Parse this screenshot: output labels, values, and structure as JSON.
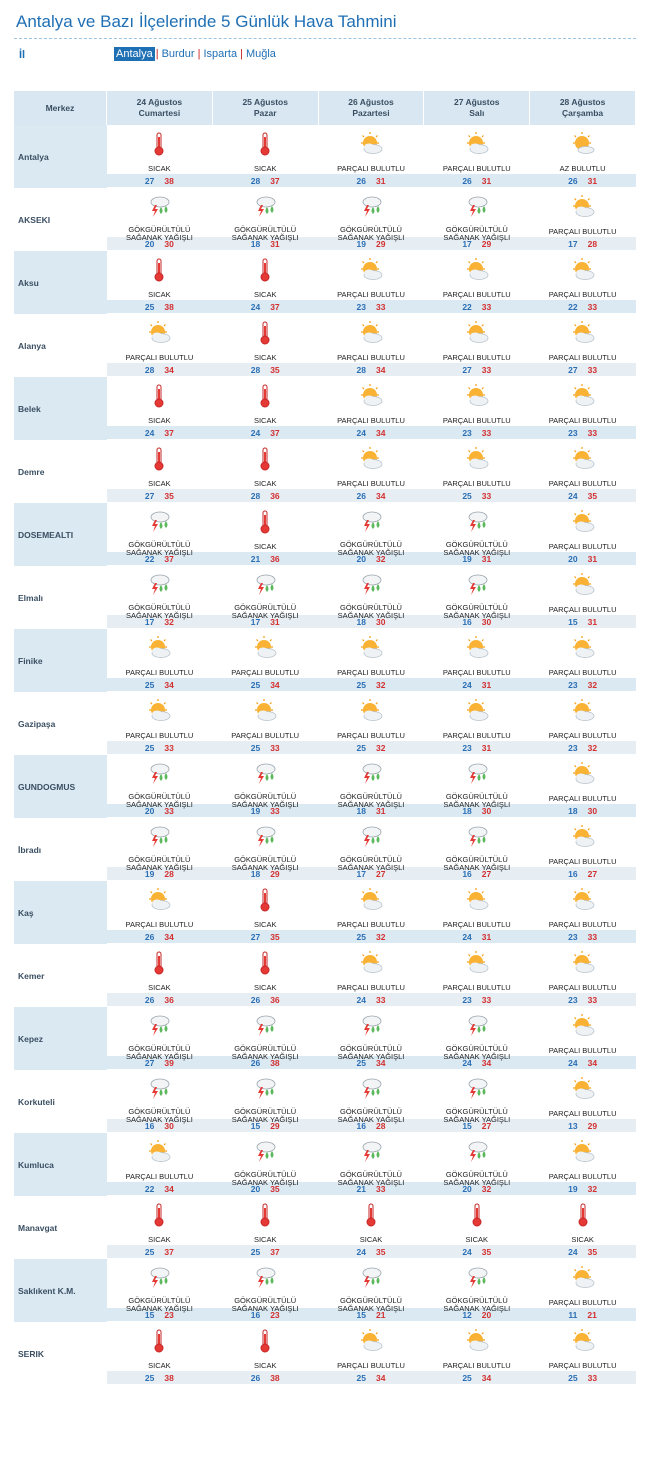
{
  "page_title": "Antalya ve Bazı İlçelerinde 5 Günlük Hava Tahmini",
  "il_label": "İl",
  "provinces": [
    {
      "label": "Antalya",
      "active": true
    },
    {
      "label": "Burdur",
      "active": false
    },
    {
      "label": "Isparta",
      "active": false
    },
    {
      "label": "Muğla",
      "active": false
    }
  ],
  "header": {
    "merkez": "Merkez",
    "days": [
      {
        "date": "24 Ağustos",
        "weekday": "Cumartesi"
      },
      {
        "date": "25 Ağustos",
        "weekday": "Pazar"
      },
      {
        "date": "26 Ağustos",
        "weekday": "Pazartesi"
      },
      {
        "date": "27 Ağustos",
        "weekday": "Salı"
      },
      {
        "date": "28 Ağustos",
        "weekday": "Çarşamba"
      }
    ]
  },
  "conditions": {
    "hot": "SICAK",
    "partly": "PARÇALI BULUTLU",
    "few": "AZ BULUTLU",
    "storm_1": "GÖKGÜRÜLTÜLÜ",
    "storm_2": "SAĞANAK YAĞIŞLI"
  },
  "icons": {
    "hot": "thermometer-icon",
    "partly": "partly-cloudy-icon",
    "few": "few-clouds-icon",
    "storm": "thunderstorm-icon"
  },
  "colors": {
    "accent": "#1f6fb5",
    "low": "#2a6fb5",
    "high": "#d32f2f",
    "shade": "#dbe9f2"
  },
  "cities": [
    {
      "name": "Antalya",
      "days": [
        [
          "hot",
          27,
          38
        ],
        [
          "hot",
          28,
          37
        ],
        [
          "partly",
          26,
          31
        ],
        [
          "partly",
          26,
          31
        ],
        [
          "few",
          26,
          31
        ]
      ]
    },
    {
      "name": "AKSEKI",
      "days": [
        [
          "storm",
          20,
          30
        ],
        [
          "storm",
          18,
          31
        ],
        [
          "storm",
          19,
          29
        ],
        [
          "storm",
          17,
          29
        ],
        [
          "partly",
          17,
          28
        ]
      ]
    },
    {
      "name": "Aksu",
      "days": [
        [
          "hot",
          25,
          38
        ],
        [
          "hot",
          24,
          37
        ],
        [
          "partly",
          23,
          33
        ],
        [
          "partly",
          22,
          33
        ],
        [
          "partly",
          22,
          33
        ]
      ]
    },
    {
      "name": "Alanya",
      "days": [
        [
          "partly",
          28,
          34
        ],
        [
          "hot",
          28,
          35
        ],
        [
          "partly",
          28,
          34
        ],
        [
          "partly",
          27,
          33
        ],
        [
          "partly",
          27,
          33
        ]
      ]
    },
    {
      "name": "Belek",
      "days": [
        [
          "hot",
          24,
          37
        ],
        [
          "hot",
          24,
          37
        ],
        [
          "partly",
          24,
          34
        ],
        [
          "partly",
          23,
          33
        ],
        [
          "partly",
          23,
          33
        ]
      ]
    },
    {
      "name": "Demre",
      "days": [
        [
          "hot",
          27,
          35
        ],
        [
          "hot",
          28,
          36
        ],
        [
          "partly",
          26,
          34
        ],
        [
          "partly",
          25,
          33
        ],
        [
          "partly",
          24,
          35
        ]
      ]
    },
    {
      "name": "DOSEMEALTI",
      "days": [
        [
          "storm",
          22,
          37
        ],
        [
          "hot",
          21,
          36
        ],
        [
          "storm",
          20,
          32
        ],
        [
          "storm",
          19,
          31
        ],
        [
          "partly",
          20,
          31
        ]
      ]
    },
    {
      "name": "Elmalı",
      "days": [
        [
          "storm",
          17,
          32
        ],
        [
          "storm",
          17,
          31
        ],
        [
          "storm",
          18,
          30
        ],
        [
          "storm",
          16,
          30
        ],
        [
          "partly",
          15,
          31
        ]
      ]
    },
    {
      "name": "Finike",
      "days": [
        [
          "partly",
          25,
          34
        ],
        [
          "partly",
          25,
          34
        ],
        [
          "partly",
          25,
          32
        ],
        [
          "partly",
          24,
          31
        ],
        [
          "partly",
          23,
          32
        ]
      ]
    },
    {
      "name": "Gazipaşa",
      "days": [
        [
          "partly",
          25,
          33
        ],
        [
          "partly",
          25,
          33
        ],
        [
          "partly",
          25,
          32
        ],
        [
          "partly",
          23,
          31
        ],
        [
          "partly",
          23,
          32
        ]
      ]
    },
    {
      "name": "GUNDOGMUS",
      "days": [
        [
          "storm",
          20,
          33
        ],
        [
          "storm",
          19,
          33
        ],
        [
          "storm",
          18,
          31
        ],
        [
          "storm",
          18,
          30
        ],
        [
          "partly",
          18,
          30
        ]
      ]
    },
    {
      "name": "İbradı",
      "days": [
        [
          "storm",
          19,
          28
        ],
        [
          "storm",
          18,
          29
        ],
        [
          "storm",
          17,
          27
        ],
        [
          "storm",
          16,
          27
        ],
        [
          "partly",
          16,
          27
        ]
      ]
    },
    {
      "name": "Kaş",
      "days": [
        [
          "partly",
          26,
          34
        ],
        [
          "hot",
          27,
          35
        ],
        [
          "partly",
          25,
          32
        ],
        [
          "partly",
          24,
          31
        ],
        [
          "partly",
          23,
          33
        ]
      ]
    },
    {
      "name": "Kemer",
      "days": [
        [
          "hot",
          26,
          36
        ],
        [
          "hot",
          26,
          36
        ],
        [
          "partly",
          24,
          33
        ],
        [
          "partly",
          23,
          33
        ],
        [
          "partly",
          23,
          33
        ]
      ]
    },
    {
      "name": "Kepez",
      "days": [
        [
          "storm",
          27,
          39
        ],
        [
          "storm",
          26,
          38
        ],
        [
          "storm",
          25,
          34
        ],
        [
          "storm",
          24,
          34
        ],
        [
          "partly",
          24,
          34
        ]
      ]
    },
    {
      "name": "Korkuteli",
      "days": [
        [
          "storm",
          16,
          30
        ],
        [
          "storm",
          15,
          29
        ],
        [
          "storm",
          16,
          28
        ],
        [
          "storm",
          15,
          27
        ],
        [
          "partly",
          13,
          29
        ]
      ]
    },
    {
      "name": "Kumluca",
      "days": [
        [
          "partly",
          22,
          34
        ],
        [
          "storm",
          20,
          35
        ],
        [
          "storm",
          21,
          33
        ],
        [
          "storm",
          20,
          32
        ],
        [
          "partly",
          19,
          32
        ]
      ]
    },
    {
      "name": "Manavgat",
      "days": [
        [
          "hot",
          25,
          37
        ],
        [
          "hot",
          25,
          37
        ],
        [
          "hot",
          24,
          35
        ],
        [
          "hot",
          24,
          35
        ],
        [
          "hot",
          24,
          35
        ]
      ]
    },
    {
      "name": "Saklıkent K.M.",
      "days": [
        [
          "storm",
          15,
          23
        ],
        [
          "storm",
          16,
          23
        ],
        [
          "storm",
          15,
          21
        ],
        [
          "storm",
          12,
          20
        ],
        [
          "partly",
          11,
          21
        ]
      ]
    },
    {
      "name": "SERIK",
      "days": [
        [
          "hot",
          25,
          38
        ],
        [
          "hot",
          26,
          38
        ],
        [
          "partly",
          25,
          34
        ],
        [
          "partly",
          25,
          34
        ],
        [
          "partly",
          25,
          33
        ]
      ]
    }
  ]
}
